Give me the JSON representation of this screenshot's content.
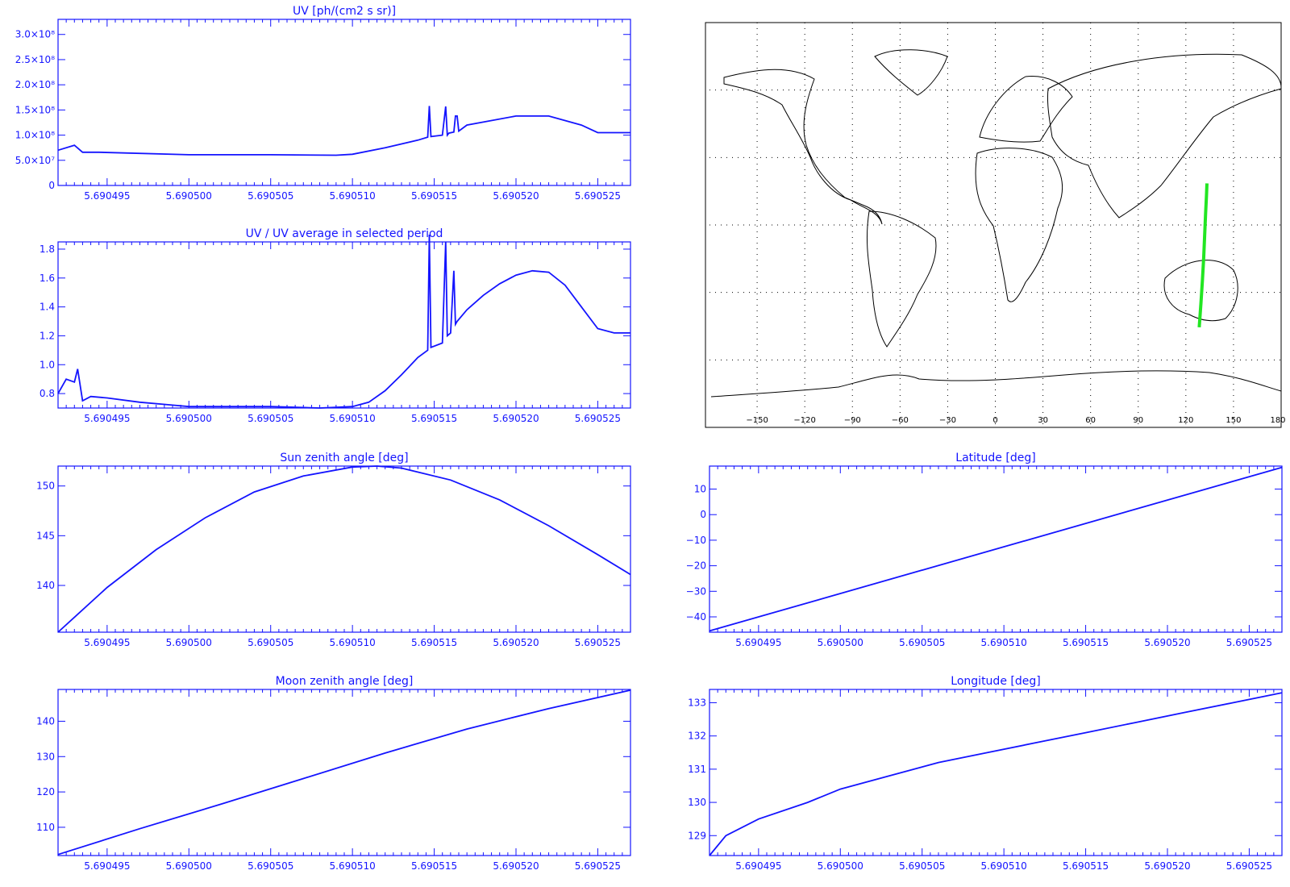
{
  "colors": {
    "plot": "#1414ff",
    "map_line": "#000000",
    "track": "#22e622",
    "background": "#ffffff"
  },
  "x_ticks": [
    "5.690495",
    "5.690500",
    "5.690505",
    "5.690510",
    "5.690515",
    "5.690520",
    "5.690525"
  ],
  "chart_data": [
    {
      "id": "uv",
      "type": "line",
      "title": "UV [ph/(cm2 s sr)]",
      "xlim": [
        5.690492,
        5.690527
      ],
      "ylim": [
        0,
        330000000.0
      ],
      "y_tick_values": [
        0,
        50000000.0,
        100000000.0,
        150000000.0,
        200000000.0,
        250000000.0,
        300000000.0
      ],
      "y_tick_labels": [
        "0",
        "5.0×10⁷",
        "1.0×10⁸",
        "1.5×10⁸",
        "2.0×10⁸",
        "2.5×10⁸",
        "3.0×10⁸"
      ],
      "series": [
        {
          "x": [
            5.690492,
            5.690493,
            5.6904935,
            5.6904945,
            5.6905,
            5.690505,
            5.690509,
            5.69051,
            5.690512,
            5.690514,
            5.6905146,
            5.6905147,
            5.6905148,
            5.6905155,
            5.6905157,
            5.6905158,
            5.6905159,
            5.6905162,
            5.6905163,
            5.6905164,
            5.6905165,
            5.690517,
            5.69052,
            5.690522,
            5.690524,
            5.690525,
            5.690527
          ],
          "y": [
            70000000.0,
            80000000.0,
            66000000.0,
            66000000.0,
            61000000.0,
            61000000.0,
            60000000.0,
            62000000.0,
            75000000.0,
            90000000.0,
            96000000.0,
            158000000.0,
            97000000.0,
            100000000.0,
            157000000.0,
            100000000.0,
            104000000.0,
            106000000.0,
            138000000.0,
            138000000.0,
            108000000.0,
            120000000.0,
            138000000.0,
            138000000.0,
            120000000.0,
            105000000.0,
            105000000.0
          ]
        }
      ]
    },
    {
      "id": "uv-ratio",
      "type": "line",
      "title": "UV / UV average in selected period",
      "xlim": [
        5.690492,
        5.690527
      ],
      "ylim": [
        0.7,
        1.85
      ],
      "y_tick_values": [
        0.8,
        1.0,
        1.2,
        1.4,
        1.6,
        1.8
      ],
      "y_tick_labels": [
        "0.8",
        "1.0",
        "1.2",
        "1.4",
        "1.6",
        "1.8"
      ],
      "series": [
        {
          "x": [
            5.690492,
            5.6904925,
            5.690493,
            5.6904932,
            5.6904935,
            5.690494,
            5.690495,
            5.690497,
            5.690499,
            5.6905,
            5.690503,
            5.690505,
            5.690508,
            5.69051,
            5.690511,
            5.690512,
            5.690513,
            5.690514,
            5.6905146,
            5.6905147,
            5.6905148,
            5.6905155,
            5.6905157,
            5.6905158,
            5.690516,
            5.6905162,
            5.6905163,
            5.6905164,
            5.690517,
            5.690518,
            5.690519,
            5.69052,
            5.690521,
            5.690522,
            5.690523,
            5.690524,
            5.690525,
            5.690526,
            5.690527
          ],
          "y": [
            0.8,
            0.9,
            0.88,
            0.97,
            0.75,
            0.78,
            0.77,
            0.74,
            0.72,
            0.71,
            0.71,
            0.71,
            0.7,
            0.71,
            0.74,
            0.82,
            0.93,
            1.05,
            1.1,
            1.9,
            1.12,
            1.15,
            1.85,
            1.2,
            1.22,
            1.65,
            1.28,
            1.3,
            1.38,
            1.48,
            1.56,
            1.62,
            1.65,
            1.64,
            1.55,
            1.4,
            1.25,
            1.22,
            1.22
          ]
        }
      ]
    },
    {
      "id": "sun-zenith",
      "type": "line",
      "title": "Sun zenith angle [deg]",
      "xlim": [
        5.690492,
        5.690527
      ],
      "ylim": [
        135.3,
        152.0
      ],
      "y_tick_values": [
        140,
        145,
        150
      ],
      "y_tick_labels": [
        "140",
        "145",
        "150"
      ],
      "series": [
        {
          "x": [
            5.690492,
            5.690495,
            5.690498,
            5.690501,
            5.690504,
            5.690507,
            5.69051,
            5.6905115,
            5.690513,
            5.690516,
            5.690519,
            5.690522,
            5.690525,
            5.690527
          ],
          "y": [
            135.3,
            139.8,
            143.6,
            146.8,
            149.4,
            151.0,
            151.9,
            152.0,
            151.8,
            150.6,
            148.6,
            146.0,
            143.1,
            141.1
          ]
        }
      ]
    },
    {
      "id": "latitude",
      "type": "line",
      "title": "Latitude [deg]",
      "xlim": [
        5.690492,
        5.690527
      ],
      "ylim": [
        -46,
        19
      ],
      "y_tick_values": [
        -40,
        -30,
        -20,
        -10,
        0,
        10
      ],
      "y_tick_labels": [
        "−40",
        "−30",
        "−20",
        "−10",
        "0",
        "10"
      ],
      "series": [
        {
          "x": [
            5.690492,
            5.690527
          ],
          "y": [
            -45.5,
            18.5
          ]
        }
      ]
    },
    {
      "id": "moon-zenith",
      "type": "line",
      "title": "Moon zenith angle [deg]",
      "xlim": [
        5.690492,
        5.690527
      ],
      "ylim": [
        102,
        149
      ],
      "y_tick_values": [
        110,
        120,
        130,
        140
      ],
      "y_tick_labels": [
        "110",
        "120",
        "130",
        "140"
      ],
      "series": [
        {
          "x": [
            5.690492,
            5.690497,
            5.690502,
            5.690507,
            5.690512,
            5.690517,
            5.690522,
            5.690527
          ],
          "y": [
            102.3,
            109.6,
            116.6,
            123.8,
            131.0,
            137.8,
            143.6,
            148.8
          ]
        }
      ]
    },
    {
      "id": "longitude",
      "type": "line",
      "title": "Longitude [deg]",
      "xlim": [
        5.690492,
        5.690527
      ],
      "ylim": [
        128.4,
        133.4
      ],
      "y_tick_values": [
        129,
        130,
        131,
        132,
        133
      ],
      "y_tick_labels": [
        "129",
        "130",
        "131",
        "132",
        "133"
      ],
      "series": [
        {
          "x": [
            5.690492,
            5.690493,
            5.690495,
            5.690498,
            5.6905,
            5.690503,
            5.690506,
            5.690509,
            5.690512,
            5.690515,
            5.690518,
            5.690521,
            5.690524,
            5.690527
          ],
          "y": [
            128.4,
            129.0,
            129.5,
            130.0,
            130.4,
            130.8,
            131.2,
            131.5,
            131.8,
            132.1,
            132.4,
            132.7,
            133.0,
            133.3
          ]
        }
      ]
    },
    {
      "id": "ground-track-map",
      "type": "scatter",
      "xlim": [
        -180,
        180
      ],
      "ylim": [
        -90,
        90
      ],
      "x_tick_values": [
        -150,
        -120,
        -90,
        -60,
        -30,
        0,
        30,
        60,
        90,
        120,
        150,
        180
      ],
      "x_tick_labels": [
        "−150",
        "−120",
        "−90",
        "−60",
        "−30",
        "0",
        "30",
        "60",
        "90",
        "120",
        "150",
        "180"
      ],
      "grid_lon": [
        -150,
        -120,
        -90,
        -60,
        -30,
        0,
        30,
        60,
        90,
        120,
        150
      ],
      "grid_lat": [
        -60,
        -30,
        0,
        30,
        60
      ],
      "series": [
        {
          "x": [
            128.4,
            129.5,
            130.4,
            131.2,
            131.8,
            132.4,
            133.0,
            133.3
          ],
          "y": [
            -45.5,
            -35,
            -25,
            -15,
            -5,
            5,
            13,
            18.5
          ]
        }
      ]
    }
  ]
}
